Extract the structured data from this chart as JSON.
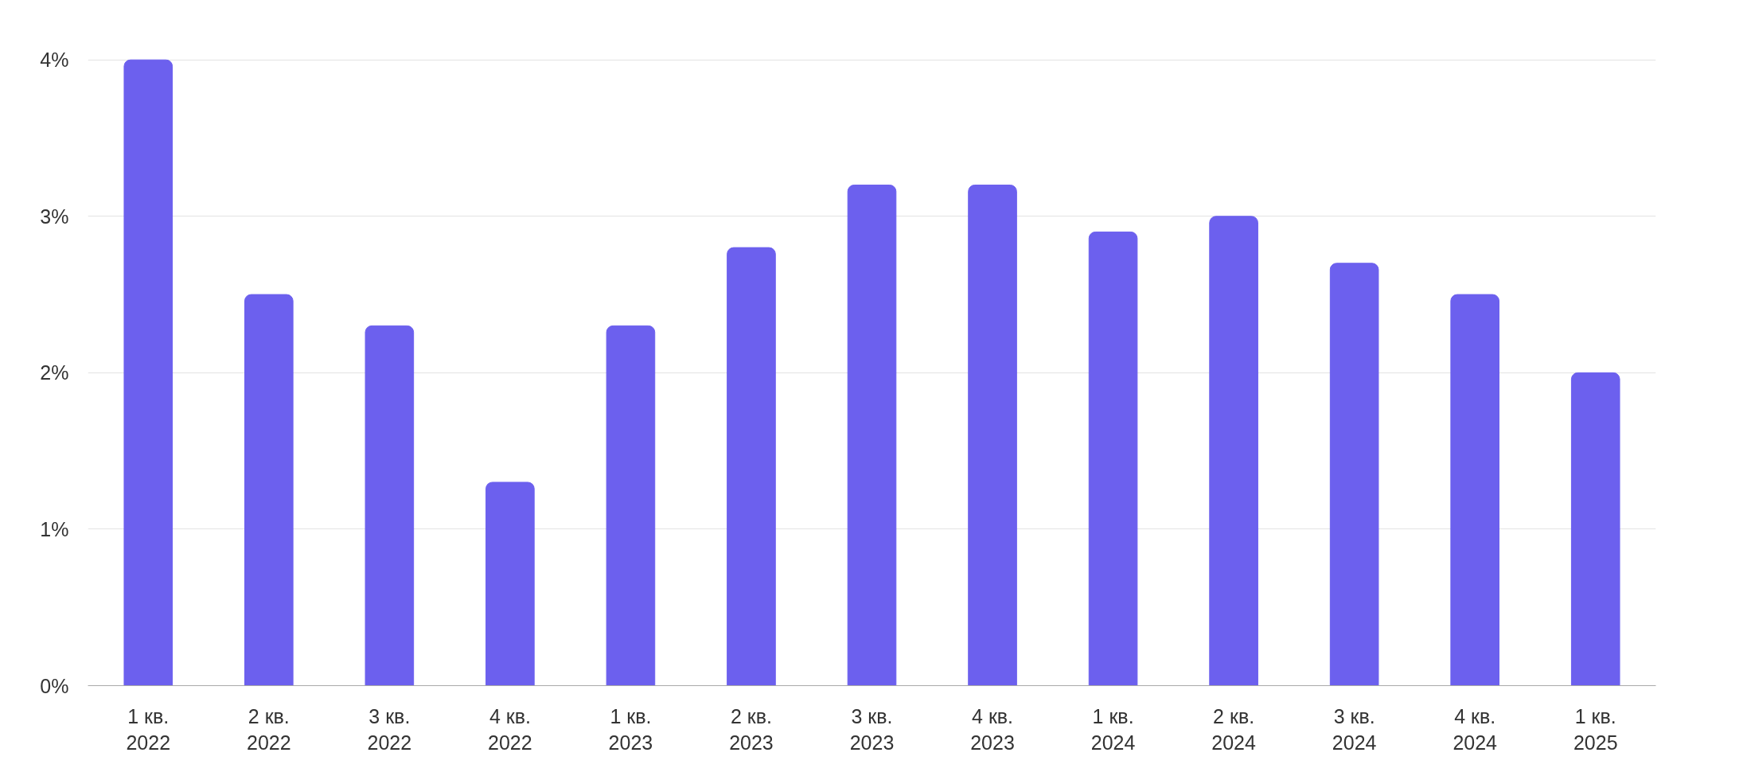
{
  "chart_data": {
    "type": "bar",
    "categories": [
      "1 кв.\n2022",
      "2 кв.\n2022",
      "3 кв.\n2022",
      "4 кв.\n2022",
      "1 кв.\n2023",
      "2 кв.\n2023",
      "3 кв.\n2023",
      "4 кв.\n2023",
      "1 кв.\n2024",
      "2 кв.\n2024",
      "3 кв.\n2024",
      "4 кв.\n2024",
      "1 кв.\n2025"
    ],
    "values": [
      4.0,
      2.5,
      2.3,
      1.3,
      2.3,
      2.8,
      3.2,
      3.2,
      2.9,
      3.0,
      2.7,
      2.5,
      2.0
    ],
    "color": "#6c60ee",
    "ylim": [
      0,
      4
    ],
    "yticks": [
      {
        "value": 0,
        "label": "0%"
      },
      {
        "value": 1,
        "label": "1%"
      },
      {
        "value": 2,
        "label": "2%"
      },
      {
        "value": 3,
        "label": "3%"
      },
      {
        "value": 4,
        "label": "4%"
      }
    ],
    "grid": "y"
  }
}
